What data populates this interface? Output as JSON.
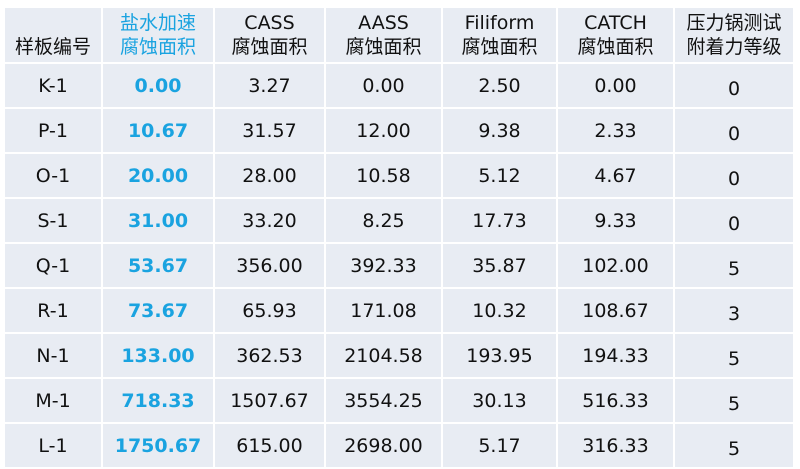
{
  "colors": {
    "accent": "#1aa3e0",
    "cell_bg": "#e8ecf3"
  },
  "headers": [
    [
      "",
      "样板编号"
    ],
    [
      "盐水加速",
      "腐蚀面积"
    ],
    [
      "CASS",
      "腐蚀面积"
    ],
    [
      "AASS",
      "腐蚀面积"
    ],
    [
      "Filiform",
      "腐蚀面积"
    ],
    [
      "CATCH",
      "腐蚀面积"
    ],
    [
      "压力锅测试",
      "附着力等级"
    ]
  ],
  "rows": [
    [
      "K-1",
      "0.00",
      "3.27",
      "0.00",
      "2.50",
      "0.00",
      "0"
    ],
    [
      "P-1",
      "10.67",
      "31.57",
      "12.00",
      "9.38",
      "2.33",
      "0"
    ],
    [
      "O-1",
      "20.00",
      "28.00",
      "10.58",
      "5.12",
      "4.67",
      "0"
    ],
    [
      "S-1",
      "31.00",
      "33.20",
      "8.25",
      "17.73",
      "9.33",
      "0"
    ],
    [
      "Q-1",
      "53.67",
      "356.00",
      "392.33",
      "35.87",
      "102.00",
      "5"
    ],
    [
      "R-1",
      "73.67",
      "65.93",
      "171.08",
      "10.32",
      "108.67",
      "3"
    ],
    [
      "N-1",
      "133.00",
      "362.53",
      "2104.58",
      "193.95",
      "194.33",
      "5"
    ],
    [
      "M-1",
      "718.33",
      "1507.67",
      "3554.25",
      "30.13",
      "516.33",
      "5"
    ],
    [
      "L-1",
      "1750.67",
      "615.00",
      "2698.00",
      "5.17",
      "316.33",
      "5"
    ]
  ]
}
